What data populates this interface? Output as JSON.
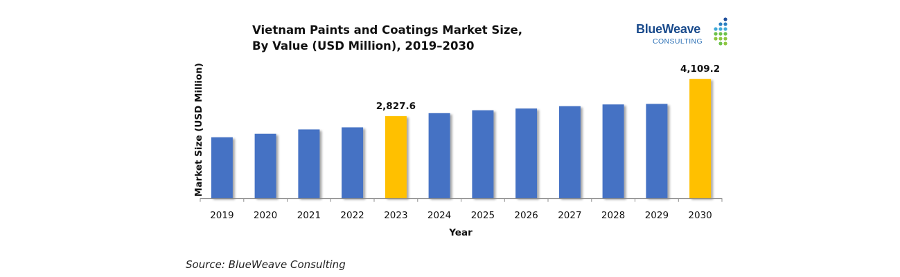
{
  "title_line1": "Vietnam Paints and Coatings Market Size,",
  "title_line2": "By Value (USD Million), 2019–2030",
  "logo": {
    "name": "BlueWeave",
    "sub": "CONSULTING",
    "dot_colors": [
      "#1f4e9c",
      "#2a7fc1",
      "#3fa9d8",
      "#6cc24a",
      "#8dc63f"
    ]
  },
  "source": "Source: BlueWeave Consulting",
  "colors": {
    "bar": "#4472c4",
    "highlight": "#ffc000"
  },
  "chart_data": {
    "type": "bar",
    "categories": [
      "2019",
      "2020",
      "2021",
      "2022",
      "2023",
      "2024",
      "2025",
      "2026",
      "2027",
      "2028",
      "2029",
      "2030"
    ],
    "values": [
      2100,
      2220,
      2370,
      2440,
      2827.6,
      2930,
      3030,
      3090,
      3170,
      3230,
      3250,
      4109.2
    ],
    "highlighted": [
      "2023",
      "2030"
    ],
    "data_labels": [
      {
        "category": "2023",
        "text": "2,827.6"
      },
      {
        "category": "2030",
        "text": "4,109.2"
      }
    ],
    "xlabel": "Year",
    "ylabel": "Market Size (USD Million)",
    "ylim": [
      0,
      4400
    ],
    "grid": false,
    "legend": "none"
  }
}
